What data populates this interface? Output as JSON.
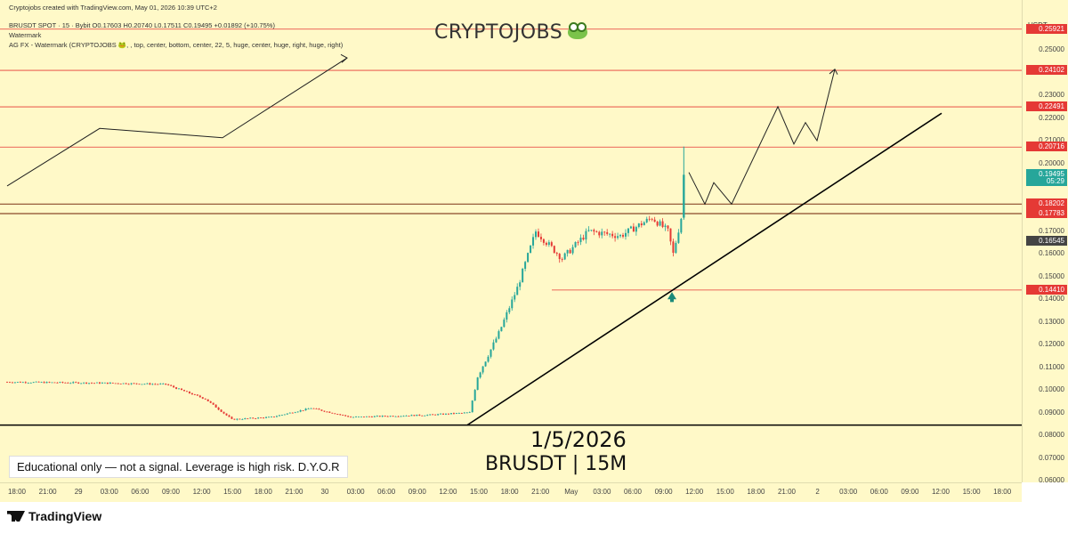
{
  "header": {
    "created_line": "Cryptojobs created with TradingView.com, May 01, 2026 10:39 UTC+2",
    "symbol_line": "BRUSDT SPOT · 15 · Bybit  O0.17603  H0.20740  L0.17511  C0.19495  +0.01892 (+10.75%)",
    "watermark_line": "Watermark",
    "indicator_line": "AG FX - Watermark (CRYPTOJOBS 🐸, , top, center, bottom, center, 22, 5, huge, center, huge, right, huge, right)"
  },
  "watermark": {
    "text": "CRYPTOJOBS",
    "icon": "frog-icon"
  },
  "annotations": {
    "date": "1/5/2026",
    "pair": "BRUSDT | 15M",
    "disclaimer": "Educational only — not a signal. Leverage is high risk. D.Y.O.R"
  },
  "price_axis": {
    "currency": "USDT",
    "ticks": [
      "0.25000",
      "0.23000",
      "0.22000",
      "0.21000",
      "0.20000",
      "0.17000",
      "0.16000",
      "0.15000",
      "0.14000",
      "0.13000",
      "0.12000",
      "0.11000",
      "0.10000",
      "0.09000",
      "0.08000",
      "0.07000",
      "0.06000"
    ],
    "tick_values": [
      0.25,
      0.23,
      0.22,
      0.21,
      0.2,
      0.17,
      0.16,
      0.15,
      0.14,
      0.13,
      0.12,
      0.11,
      0.1,
      0.09,
      0.08,
      0.07,
      0.06
    ],
    "badges": [
      {
        "text": "0.25921",
        "value": 0.25921,
        "color": "#e53935"
      },
      {
        "text": "0.24102",
        "value": 0.24102,
        "color": "#e53935"
      },
      {
        "text": "0.22491",
        "value": 0.22491,
        "color": "#e53935"
      },
      {
        "text": "0.20716",
        "value": 0.20716,
        "color": "#e53935"
      },
      {
        "text": "0.19495",
        "value": 0.19495,
        "color": "#26a69a"
      },
      {
        "text": "05:29",
        "value": 0.192,
        "color": "#26a69a"
      },
      {
        "text": "0.18202",
        "value": 0.18202,
        "color": "#e53935"
      },
      {
        "text": "0.17783",
        "value": 0.17783,
        "color": "#e53935"
      },
      {
        "text": "0.16545",
        "value": 0.16545,
        "color": "#444444"
      },
      {
        "text": "0.14410",
        "value": 0.1441,
        "color": "#e53935"
      }
    ]
  },
  "time_axis": {
    "labels": [
      "18:00",
      "21:00",
      "29",
      "03:00",
      "06:00",
      "09:00",
      "12:00",
      "15:00",
      "18:00",
      "21:00",
      "30",
      "03:00",
      "06:00",
      "09:00",
      "12:00",
      "15:00",
      "18:00",
      "21:00",
      "May",
      "03:00",
      "06:00",
      "09:00",
      "12:00",
      "15:00",
      "18:00",
      "21:00",
      "2",
      "03:00",
      "06:00",
      "09:00",
      "12:00",
      "15:00",
      "18:00"
    ]
  },
  "footer": {
    "brand": "TradingView"
  },
  "colors": {
    "background": "#fff9c8",
    "up": "#26a69a",
    "down": "#e53935",
    "level": "#e53935",
    "trend": "#000000"
  },
  "chart_data": {
    "type": "candlestick",
    "interval": "15",
    "ylim": [
      0.06,
      0.265
    ],
    "horizontal_levels": [
      0.25921,
      0.24102,
      0.22491,
      0.20716,
      0.18202,
      0.17783,
      0.1441,
      0.0845
    ],
    "anchors": [
      {
        "bar": 0,
        "price": 0.1035
      },
      {
        "bar": 40,
        "price": 0.103
      },
      {
        "bar": 60,
        "price": 0.1025
      },
      {
        "bar": 75,
        "price": 0.096
      },
      {
        "bar": 85,
        "price": 0.087
      },
      {
        "bar": 100,
        "price": 0.088
      },
      {
        "bar": 115,
        "price": 0.092
      },
      {
        "bar": 130,
        "price": 0.088
      },
      {
        "bar": 160,
        "price": 0.089
      },
      {
        "bar": 175,
        "price": 0.09
      },
      {
        "bar": 178,
        "price": 0.106
      },
      {
        "bar": 186,
        "price": 0.125
      },
      {
        "bar": 193,
        "price": 0.145
      },
      {
        "bar": 200,
        "price": 0.17
      },
      {
        "bar": 210,
        "price": 0.158
      },
      {
        "bar": 220,
        "price": 0.17
      },
      {
        "bar": 232,
        "price": 0.168
      },
      {
        "bar": 244,
        "price": 0.176
      },
      {
        "bar": 250,
        "price": 0.17
      },
      {
        "bar": 252,
        "price": 0.16
      },
      {
        "bar": 255,
        "price": 0.176
      }
    ],
    "last_candle": {
      "open": 0.17603,
      "high": 0.2074,
      "low": 0.17511,
      "close": 0.19495,
      "change": 0.01892,
      "change_pct": 10.75
    }
  }
}
